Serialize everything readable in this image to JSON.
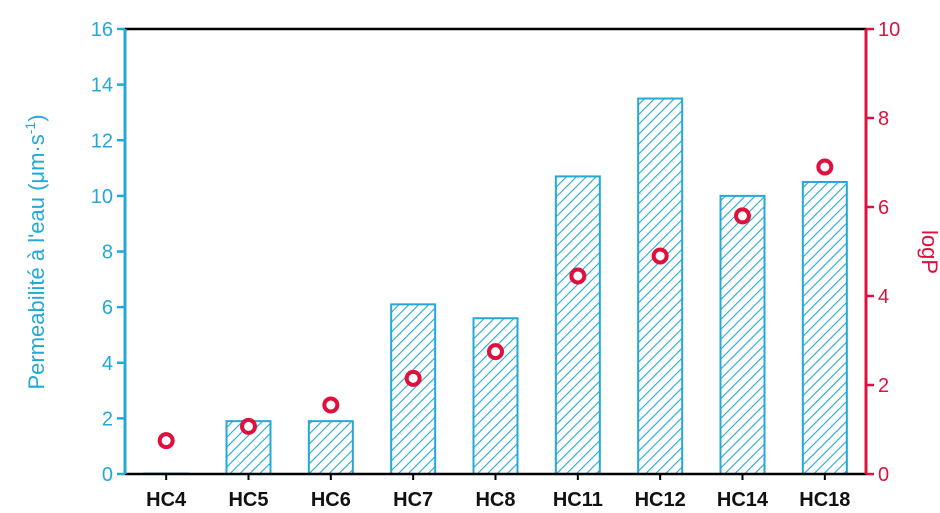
{
  "chart_data": {
    "type": "bar",
    "categories": [
      "HC4",
      "HC5",
      "HC6",
      "HC7",
      "HC8",
      "HC11",
      "HC12",
      "HC14",
      "HC18"
    ],
    "y_left": {
      "label_main": "Permeabilité à l'eau  (μm·s",
      "label_exp": "-1",
      "label_close": ")",
      "ylim": [
        0,
        16
      ],
      "ticks": [
        "0",
        "2",
        "4",
        "6",
        "8",
        "10",
        "12",
        "14",
        "16"
      ]
    },
    "y_right": {
      "label": "logP",
      "ylim": [
        0,
        10
      ],
      "ticks": [
        "0",
        "2",
        "4",
        "6",
        "8",
        "10"
      ]
    },
    "series": [
      {
        "axis": "left",
        "kind": "bar-hatched",
        "values": [
          0.0,
          1.9,
          1.9,
          6.1,
          5.6,
          10.7,
          13.5,
          10.0,
          10.5
        ]
      },
      {
        "axis": "right",
        "kind": "scatter-circle",
        "values": [
          0.75,
          1.07,
          1.55,
          2.15,
          2.75,
          4.45,
          4.9,
          5.8,
          6.9
        ]
      }
    ],
    "colors": {
      "bar": "#23a9d8",
      "marker": "#e0103e",
      "frame": "#000000",
      "left_axis": "#23a9d8",
      "right_axis": "#e0103e"
    },
    "grid": false
  }
}
